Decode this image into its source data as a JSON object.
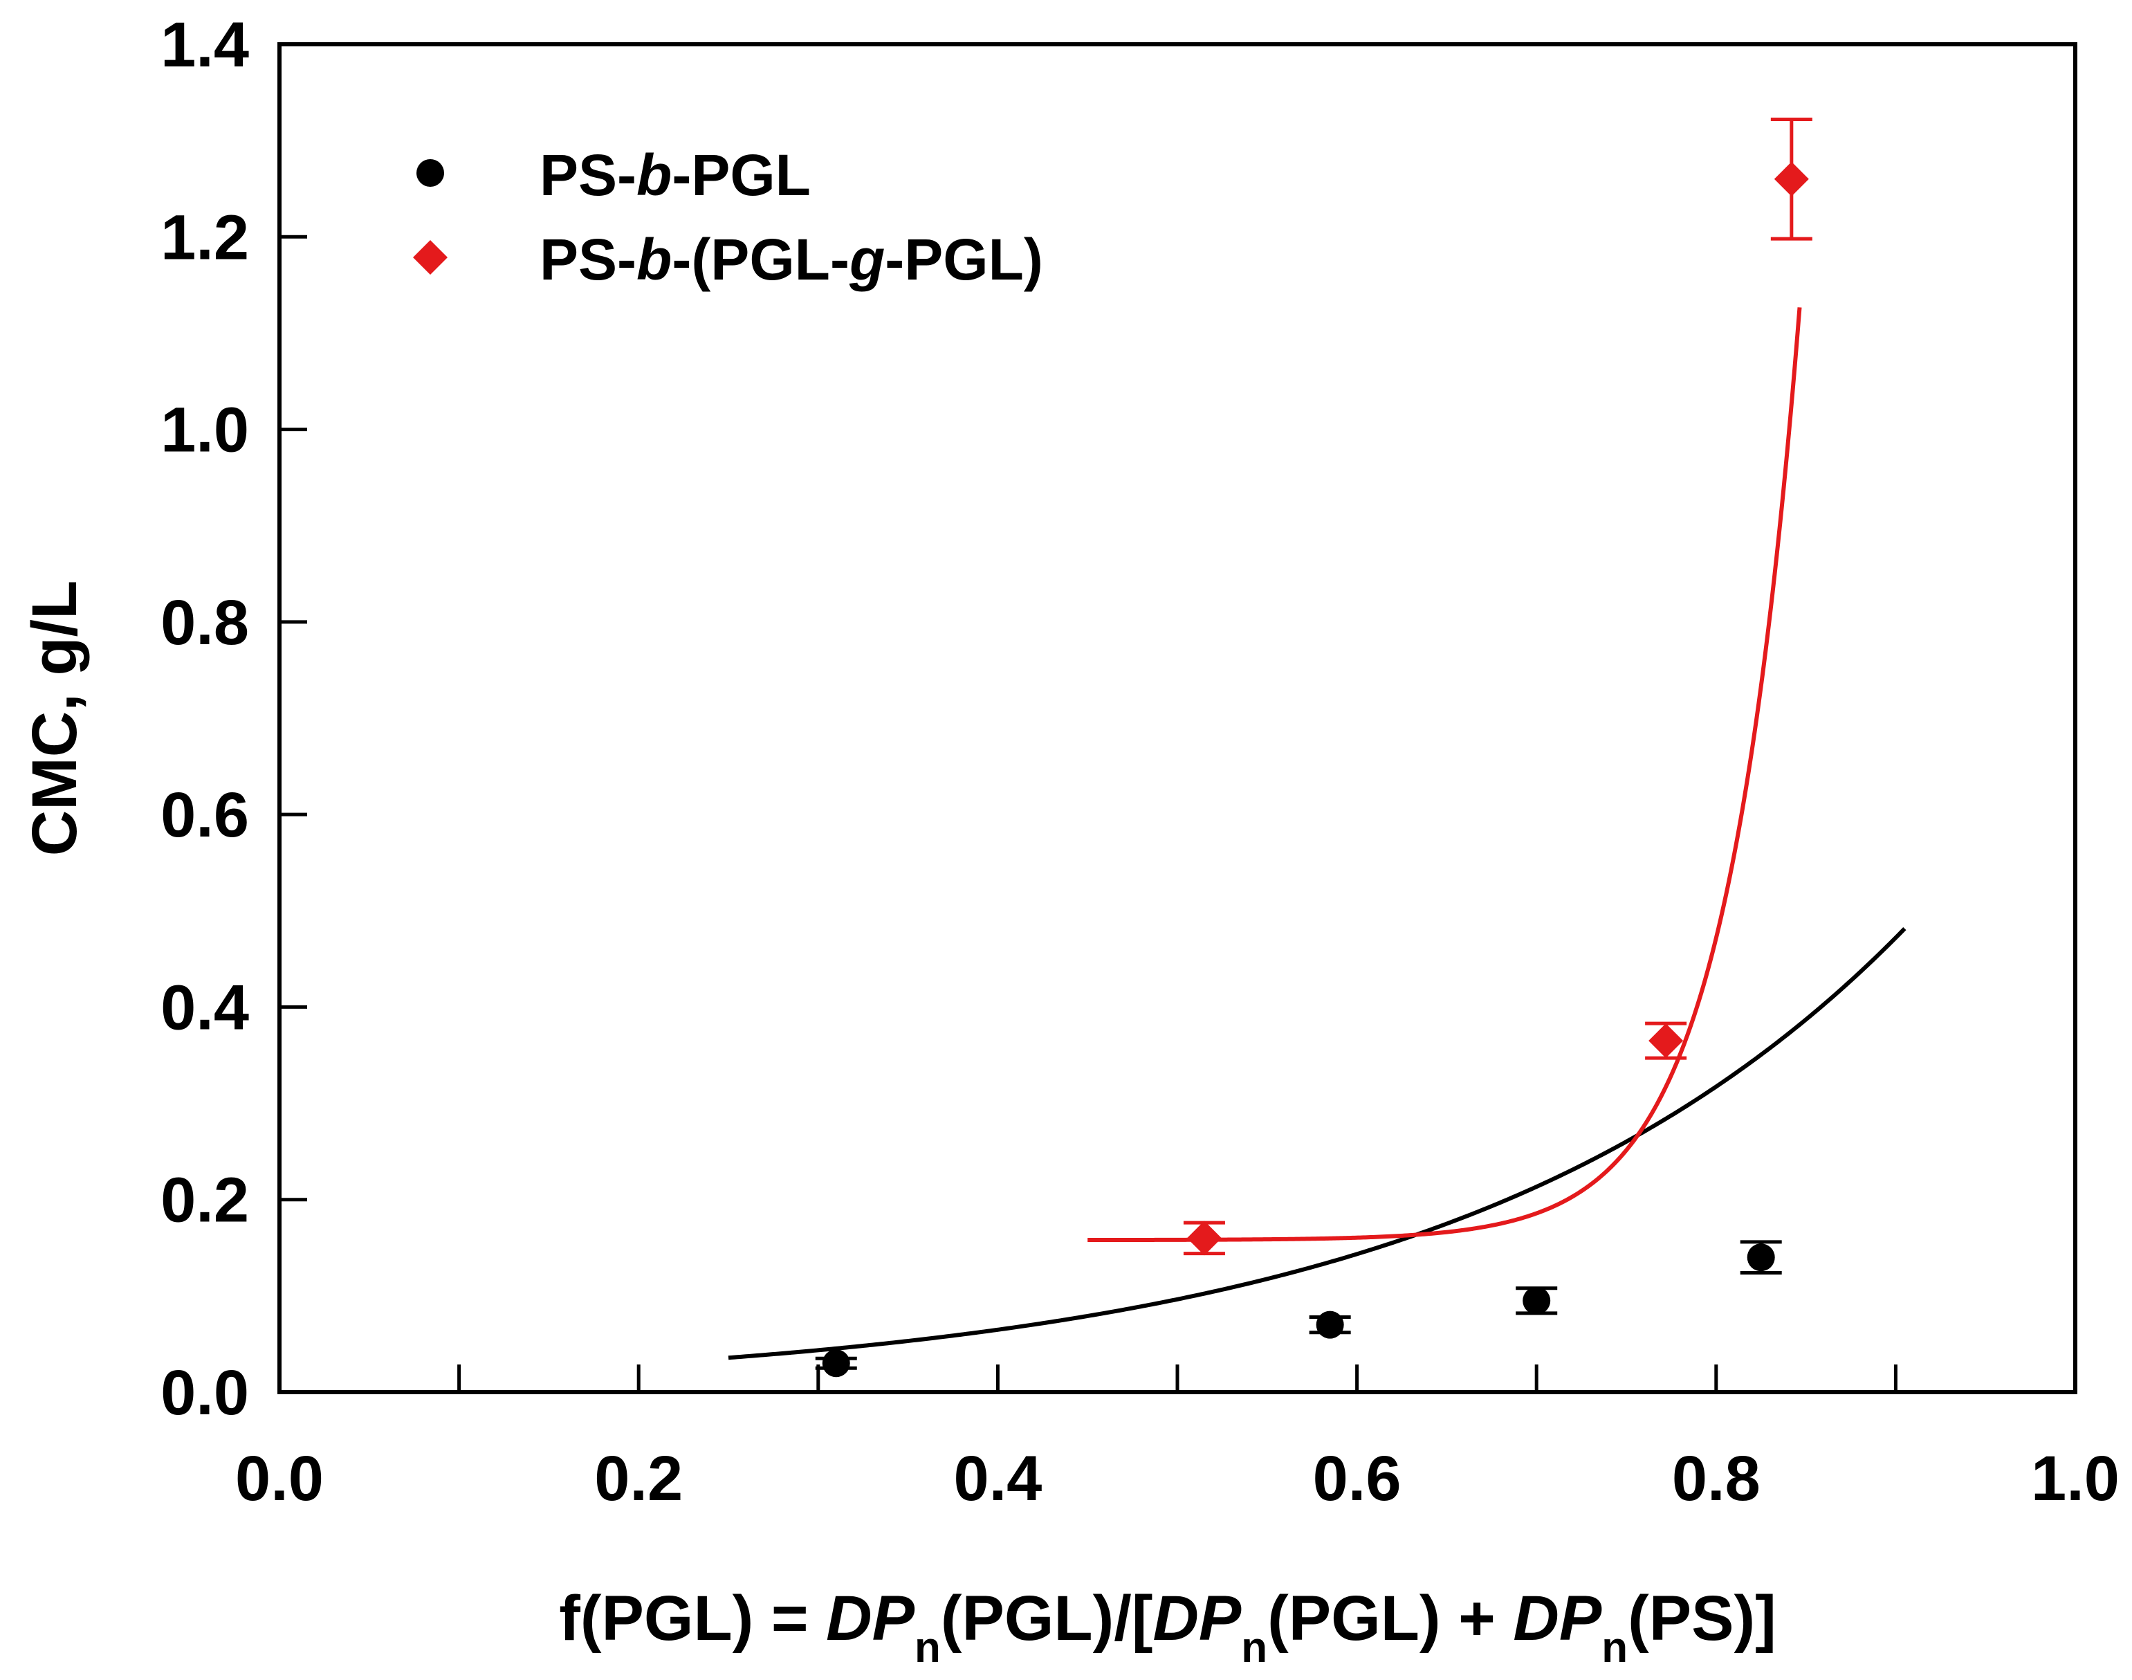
{
  "chart_data": {
    "type": "scatter",
    "x_axis": {
      "label_parts": [
        {
          "text": "f(PGL) = ",
          "style": "normal"
        },
        {
          "text": "DP",
          "style": "italic"
        },
        {
          "text": "n",
          "style": "sub"
        },
        {
          "text": "(PGL)/[",
          "style": "normal"
        },
        {
          "text": "DP",
          "style": "italic"
        },
        {
          "text": "n",
          "style": "sub"
        },
        {
          "text": "(PGL) + ",
          "style": "normal"
        },
        {
          "text": "DP",
          "style": "italic"
        },
        {
          "text": "n",
          "style": "sub"
        },
        {
          "text": "(PS)]",
          "style": "normal"
        }
      ],
      "range": [
        0.0,
        1.0
      ],
      "major_ticks": [
        0.0,
        0.2,
        0.4,
        0.6,
        0.8,
        1.0
      ],
      "minor_ticks": [
        0.1,
        0.3,
        0.5,
        0.7,
        0.9
      ],
      "tick_labels": [
        "0.0",
        "0.2",
        "0.4",
        "0.6",
        "0.8",
        "1.0"
      ]
    },
    "y_axis": {
      "label": "CMC, g/L",
      "range": [
        0.0,
        1.4
      ],
      "major_ticks": [
        0.0,
        0.2,
        0.4,
        0.6,
        0.8,
        1.0,
        1.2,
        1.4
      ],
      "minor_ticks": [],
      "tick_labels": [
        "0.0",
        "0.2",
        "0.4",
        "0.6",
        "0.8",
        "1.0",
        "1.2",
        "1.4"
      ]
    },
    "grid": false,
    "legend_position": "top-left",
    "series": [
      {
        "name_parts": [
          {
            "text": "PS-",
            "style": "normal"
          },
          {
            "text": "b",
            "style": "italic"
          },
          {
            "text": "-PGL",
            "style": "normal"
          }
        ],
        "marker": "circle",
        "color": "#000000",
        "points": [
          {
            "x": 0.31,
            "y": 0.03,
            "err": 0.005
          },
          {
            "x": 0.585,
            "y": 0.07,
            "err": 0.008
          },
          {
            "x": 0.7,
            "y": 0.095,
            "err": 0.013
          },
          {
            "x": 0.825,
            "y": 0.14,
            "err": 0.016
          }
        ],
        "fit": {
          "type": "exponential",
          "a": 0.01325,
          "b": 3.97,
          "x_range": [
            0.25,
            0.905
          ]
        }
      },
      {
        "name_parts": [
          {
            "text": "PS-",
            "style": "normal"
          },
          {
            "text": "b",
            "style": "italic"
          },
          {
            "text": "-(PGL-",
            "style": "normal"
          },
          {
            "text": "g",
            "style": "italic"
          },
          {
            "text": "-PGL)",
            "style": "normal"
          }
        ],
        "marker": "diamond",
        "color": "#e41a1c",
        "points": [
          {
            "x": 0.515,
            "y": 0.16,
            "err": 0.016
          },
          {
            "x": 0.772,
            "y": 0.365,
            "err": 0.018
          },
          {
            "x": 0.842,
            "y": 1.26,
            "err": 0.062
          }
        ],
        "fit": {
          "type": "offset_exponential",
          "c": 0.158,
          "k": 1.178e-09,
          "b": 24.25,
          "x_range": [
            0.45,
            0.8465
          ]
        }
      }
    ]
  }
}
